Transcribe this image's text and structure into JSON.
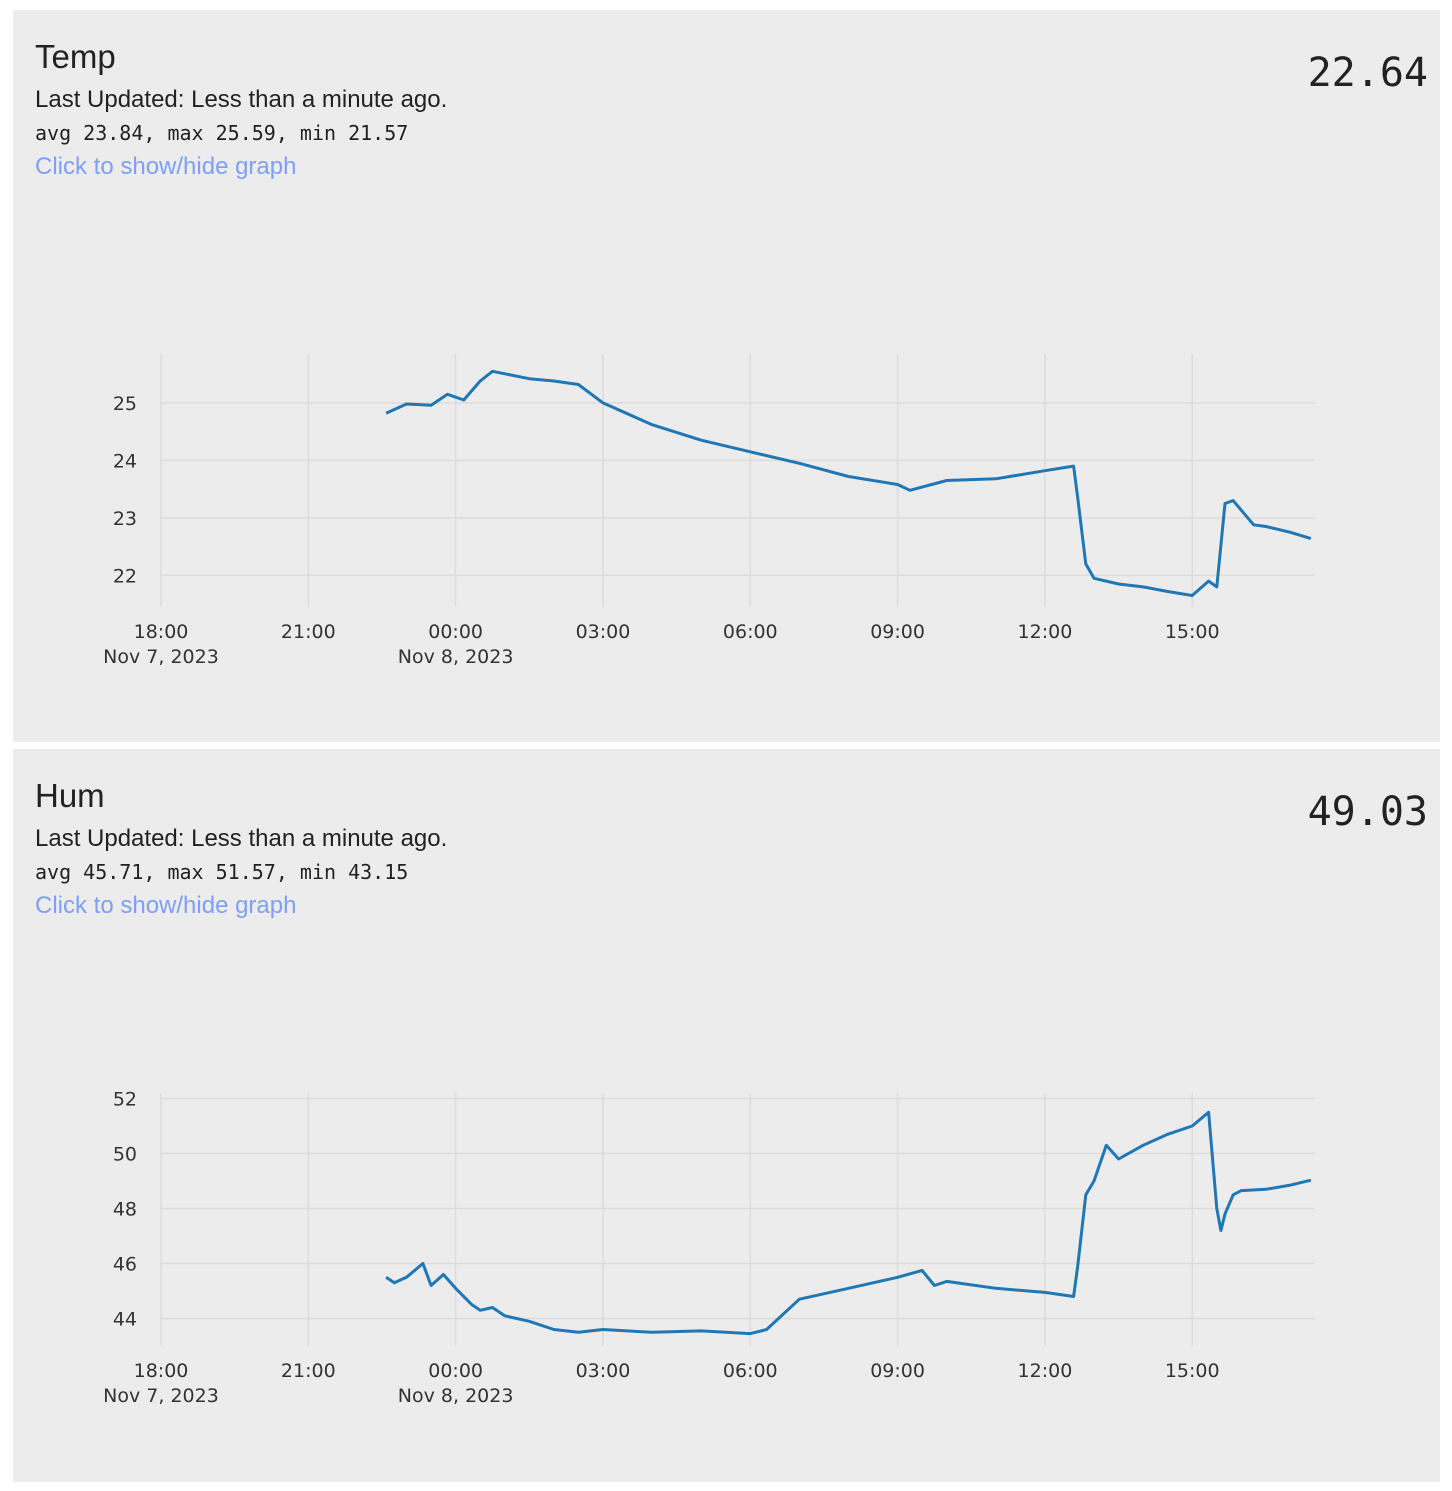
{
  "cards": [
    {
      "title": "Temp",
      "updated": "Last Updated: Less than a minute ago.",
      "stats": "avg 23.84, max 25.59, min 21.57",
      "toggle_label": "Click to show/hide graph",
      "value": "22.64"
    },
    {
      "title": "Hum",
      "updated": "Last Updated: Less than a minute ago.",
      "stats": "avg 45.71, max 51.57, min 43.15",
      "toggle_label": "Click to show/hide graph",
      "value": "49.03"
    }
  ],
  "chart_data": [
    {
      "type": "line",
      "line_color": "#1f77b4",
      "grid": true,
      "x_unit": "hours",
      "xlim": [
        "2023-11-07 18:00",
        "2023-11-08 17:30"
      ],
      "x_ticks": [
        {
          "label": "18:00",
          "sub": "Nov 7, 2023"
        },
        {
          "label": "21:00",
          "sub": ""
        },
        {
          "label": "00:00",
          "sub": "Nov 8, 2023"
        },
        {
          "label": "03:00",
          "sub": ""
        },
        {
          "label": "06:00",
          "sub": ""
        },
        {
          "label": "09:00",
          "sub": ""
        },
        {
          "label": "12:00",
          "sub": ""
        },
        {
          "label": "15:00",
          "sub": ""
        }
      ],
      "y_ticks": [
        "22",
        "23",
        "24",
        "25"
      ],
      "ylim": [
        21.45,
        25.85
      ],
      "x": [
        "2023-11-07 22:35",
        "2023-11-07 23:00",
        "2023-11-07 23:30",
        "2023-11-07 23:50",
        "2023-11-08 00:10",
        "2023-11-08 00:30",
        "2023-11-08 00:45",
        "2023-11-08 01:30",
        "2023-11-08 02:00",
        "2023-11-08 02:30",
        "2023-11-08 03:00",
        "2023-11-08 04:00",
        "2023-11-08 05:00",
        "2023-11-08 06:00",
        "2023-11-08 07:00",
        "2023-11-08 08:00",
        "2023-11-08 09:00",
        "2023-11-08 09:15",
        "2023-11-08 10:00",
        "2023-11-08 11:00",
        "2023-11-08 12:00",
        "2023-11-08 12:35",
        "2023-11-08 12:40",
        "2023-11-08 12:50",
        "2023-11-08 13:00",
        "2023-11-08 13:30",
        "2023-11-08 14:00",
        "2023-11-08 14:30",
        "2023-11-08 15:00",
        "2023-11-08 15:20",
        "2023-11-08 15:30",
        "2023-11-08 15:40",
        "2023-11-08 15:50",
        "2023-11-08 16:15",
        "2023-11-08 16:30",
        "2023-11-08 17:00",
        "2023-11-08 17:25"
      ],
      "y": [
        24.82,
        24.98,
        24.96,
        25.15,
        25.05,
        25.38,
        25.55,
        25.42,
        25.38,
        25.32,
        25.0,
        24.62,
        24.35,
        24.15,
        23.95,
        23.72,
        23.58,
        23.48,
        23.65,
        23.68,
        23.82,
        23.9,
        23.35,
        22.2,
        21.95,
        21.85,
        21.8,
        21.72,
        21.65,
        21.9,
        21.8,
        23.25,
        23.3,
        22.88,
        22.85,
        22.75,
        22.64
      ]
    },
    {
      "type": "line",
      "line_color": "#1f77b4",
      "grid": true,
      "x_unit": "hours",
      "xlim": [
        "2023-11-07 18:00",
        "2023-11-08 17:30"
      ],
      "x_ticks": [
        {
          "label": "18:00",
          "sub": "Nov 7, 2023"
        },
        {
          "label": "21:00",
          "sub": ""
        },
        {
          "label": "00:00",
          "sub": "Nov 8, 2023"
        },
        {
          "label": "03:00",
          "sub": ""
        },
        {
          "label": "06:00",
          "sub": ""
        },
        {
          "label": "09:00",
          "sub": ""
        },
        {
          "label": "12:00",
          "sub": ""
        },
        {
          "label": "15:00",
          "sub": ""
        }
      ],
      "y_ticks": [
        "44",
        "46",
        "48",
        "50",
        "52"
      ],
      "ylim": [
        43.0,
        52.2
      ],
      "x": [
        "2023-11-07 22:35",
        "2023-11-07 22:45",
        "2023-11-07 23:00",
        "2023-11-07 23:20",
        "2023-11-07 23:30",
        "2023-11-07 23:45",
        "2023-11-08 00:00",
        "2023-11-08 00:20",
        "2023-11-08 00:30",
        "2023-11-08 00:45",
        "2023-11-08 01:00",
        "2023-11-08 01:30",
        "2023-11-08 02:00",
        "2023-11-08 02:30",
        "2023-11-08 03:00",
        "2023-11-08 04:00",
        "2023-11-08 05:00",
        "2023-11-08 06:00",
        "2023-11-08 06:20",
        "2023-11-08 07:00",
        "2023-11-08 08:00",
        "2023-11-08 09:00",
        "2023-11-08 09:30",
        "2023-11-08 09:45",
        "2023-11-08 10:00",
        "2023-11-08 11:00",
        "2023-11-08 12:00",
        "2023-11-08 12:35",
        "2023-11-08 12:40",
        "2023-11-08 12:50",
        "2023-11-08 13:00",
        "2023-11-08 13:15",
        "2023-11-08 13:30",
        "2023-11-08 14:00",
        "2023-11-08 14:30",
        "2023-11-08 15:00",
        "2023-11-08 15:20",
        "2023-11-08 15:30",
        "2023-11-08 15:35",
        "2023-11-08 15:40",
        "2023-11-08 15:50",
        "2023-11-08 16:00",
        "2023-11-08 16:30",
        "2023-11-08 17:00",
        "2023-11-08 17:25"
      ],
      "y": [
        45.5,
        45.3,
        45.5,
        46.0,
        45.2,
        45.6,
        45.1,
        44.5,
        44.3,
        44.4,
        44.1,
        43.9,
        43.6,
        43.5,
        43.6,
        43.5,
        43.55,
        43.45,
        43.6,
        44.7,
        45.1,
        45.5,
        45.75,
        45.2,
        45.35,
        45.1,
        44.95,
        44.8,
        45.9,
        48.5,
        49.0,
        50.3,
        49.8,
        50.3,
        50.7,
        51.0,
        51.5,
        48.0,
        47.2,
        47.8,
        48.5,
        48.65,
        48.7,
        48.85,
        49.03
      ]
    }
  ]
}
